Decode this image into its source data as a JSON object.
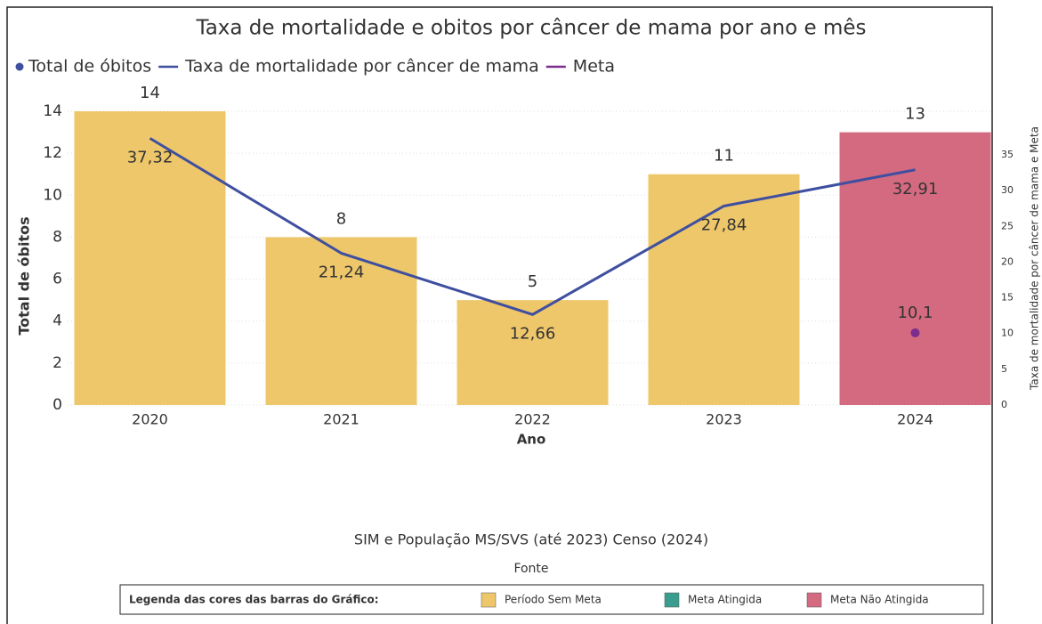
{
  "chart_data": {
    "type": "bar",
    "title": "Taxa de mortalidade e obitos por câncer de mama por ano e mês",
    "x_label": "Ano",
    "y_label": "Total de óbitos",
    "y2_label": "Taxa de mortalidade por câncer de mama e Meta",
    "categories": [
      "2020",
      "2021",
      "2022",
      "2023",
      "2024"
    ],
    "series": [
      {
        "name": "Total de óbitos",
        "type": "bar",
        "color": "#3f4fa0",
        "colors": [
          "#eec76a",
          "#eec76a",
          "#eec76a",
          "#eec76a",
          "#d46a80"
        ],
        "values": [
          14,
          8,
          5,
          11,
          13
        ]
      },
      {
        "name": "Taxa de mortalidade por câncer de mama",
        "type": "line",
        "axis": "y2",
        "color": "#3f4fa0",
        "values": [
          37.32,
          21.24,
          12.66,
          27.84,
          32.91
        ],
        "value_labels": [
          "37,32",
          "21,24",
          "12,66",
          "27,84",
          "32,91"
        ]
      },
      {
        "name": "Meta",
        "type": "line",
        "axis": "y2",
        "color": "#7b2d8e",
        "values": [
          null,
          null,
          null,
          null,
          10.1
        ],
        "value_labels": [
          null,
          null,
          null,
          null,
          "10,1"
        ]
      }
    ],
    "ylim": [
      0,
      14
    ],
    "yticks": [
      0,
      2,
      4,
      6,
      8,
      10,
      12,
      14
    ],
    "y2lim": [
      0,
      41.1
    ],
    "y2ticks": [
      0,
      5,
      10,
      15,
      20,
      25,
      30,
      35
    ],
    "grid": true,
    "source": "SIM e População MS/SVS (até 2023) Censo (2024)",
    "source_label": "Fonte",
    "color_legend": {
      "title": "Legenda das cores das barras do Gráfico:",
      "items": [
        {
          "label": "Período Sem Meta",
          "color": "#eec76a"
        },
        {
          "label": "Meta Atingida",
          "color": "#3a9e8f"
        },
        {
          "label": "Meta Não Atingida",
          "color": "#d46a80"
        }
      ]
    }
  }
}
